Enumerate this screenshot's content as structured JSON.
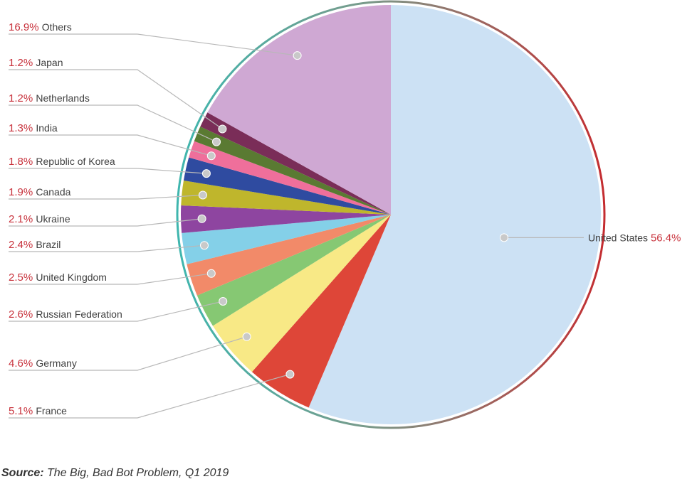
{
  "chart_data": {
    "type": "pie",
    "title": "",
    "slices": [
      {
        "label": "United States",
        "value": 56.4,
        "value_label": "56.4%",
        "color": "#cce1f4"
      },
      {
        "label": "France",
        "value": 5.1,
        "value_label": "5.1%",
        "color": "#de4638"
      },
      {
        "label": "Germany",
        "value": 4.6,
        "value_label": "4.6%",
        "color": "#f8e986"
      },
      {
        "label": "Russian Federation",
        "value": 2.6,
        "value_label": "2.6%",
        "color": "#86c873"
      },
      {
        "label": "United Kingdom",
        "value": 2.5,
        "value_label": "2.5%",
        "color": "#f28a69"
      },
      {
        "label": "Brazil",
        "value": 2.4,
        "value_label": "2.4%",
        "color": "#84d0e8"
      },
      {
        "label": "Ukraine",
        "value": 2.1,
        "value_label": "2.1%",
        "color": "#8e45a0"
      },
      {
        "label": "Canada",
        "value": 1.9,
        "value_label": "1.9%",
        "color": "#bfb62c"
      },
      {
        "label": "Republic of Korea",
        "value": 1.8,
        "value_label": "1.8%",
        "color": "#2f4ba0"
      },
      {
        "label": "India",
        "value": 1.3,
        "value_label": "1.3%",
        "color": "#ef6f9b"
      },
      {
        "label": "Netherlands",
        "value": 1.2,
        "value_label": "1.2%",
        "color": "#5a7a32"
      },
      {
        "label": "Japan",
        "value": 1.2,
        "value_label": "1.2%",
        "color": "#7a2d58"
      },
      {
        "label": "Others",
        "value": 16.9,
        "value_label": "16.9%",
        "color": "#cfa8d3"
      }
    ],
    "legend": "none",
    "label_placement": "labels with leader lines on the left; United States on the right"
  },
  "source": {
    "prefix": "Source:",
    "text": " The Big, Bad Bot Problem, Q1 2019"
  }
}
